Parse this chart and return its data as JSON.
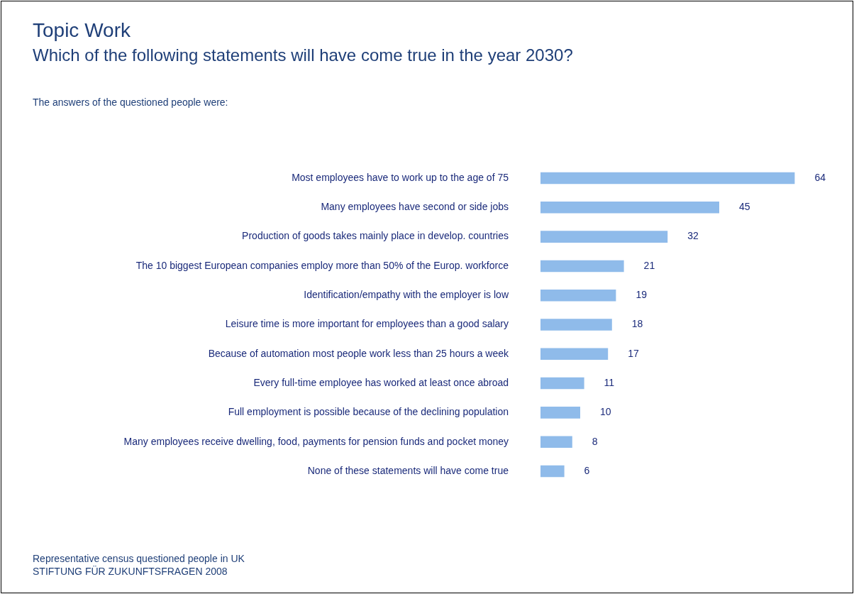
{
  "chart_data": {
    "type": "bar",
    "orientation": "horizontal",
    "title": "Topic Work",
    "subtitle": "Which of the following statements will have come true in the year 2030?",
    "categories": [
      "Most employees have to work up to the age of 75",
      "Many employees have second or side jobs",
      "Production of goods takes mainly place in develop. countries",
      "The 10 biggest European companies employ more than 50% of the Europ. workforce",
      "Identification/empathy with the employer is low",
      "Leisure time is more important for employees than a good salary",
      "Because of automation most people work less than 25 hours a week",
      "Every full-time employee has worked at least once abroad",
      "Full employment is possible because of the declining population",
      "Many employees receive dwelling, food, payments for pension funds and pocket money",
      "None of these statements will have come true"
    ],
    "values": [
      64,
      45,
      32,
      21,
      19,
      18,
      17,
      11,
      10,
      8,
      6
    ],
    "color": "#8fbbea",
    "data_labels": true,
    "legend": false,
    "tick_labels": "y",
    "annotations": [
      "The answers of the questioned people were:",
      "Representative census questioned people in UK",
      "STIFTUNG FÜR ZUKUNFTSFRAGEN 2008"
    ]
  }
}
